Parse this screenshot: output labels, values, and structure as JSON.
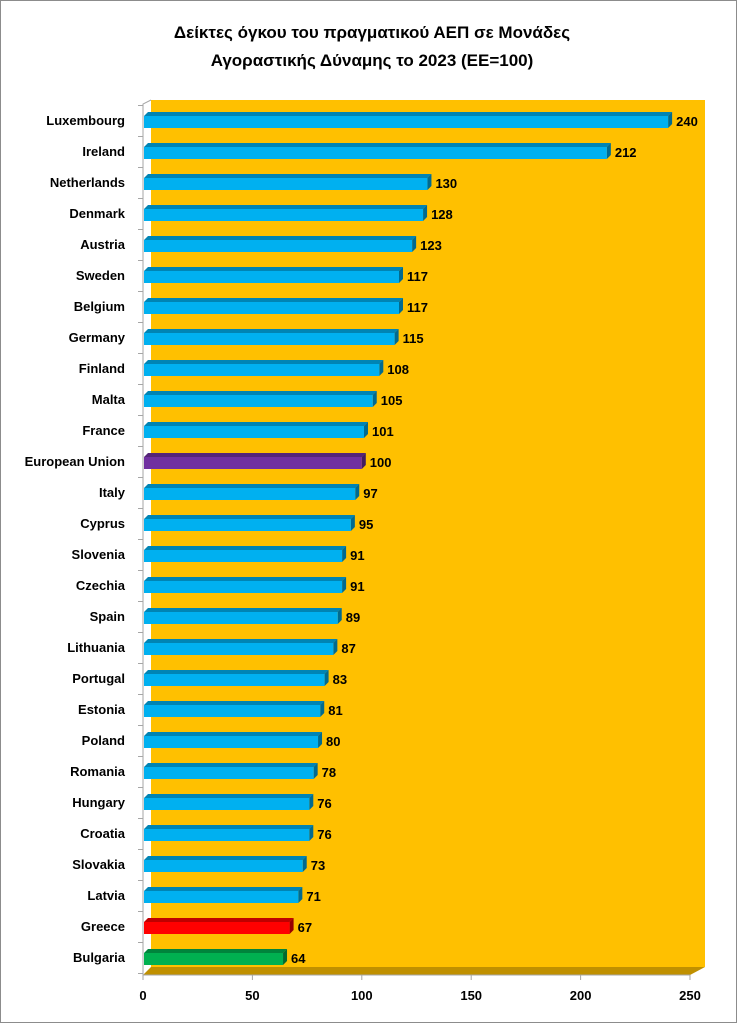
{
  "chart_data": {
    "type": "bar",
    "orientation": "horizontal",
    "title": [
      "Δείκτες όγκου του πραγματικού ΑΕΠ σε Μονάδες",
      "Αγοραστικής Δύναμης το 2023 (ΕΕ=100)"
    ],
    "xlabel": "",
    "ylabel": "",
    "xlim": [
      0,
      250
    ],
    "xticks": [
      "0",
      "50",
      "100",
      "150",
      "200",
      "250"
    ],
    "categories": [
      "Luxembourg",
      "Ireland",
      "Netherlands",
      "Denmark",
      "Austria",
      "Sweden",
      "Belgium",
      "Germany",
      "Finland",
      "Malta",
      "France",
      "European Union",
      "Italy",
      "Cyprus",
      "Slovenia",
      "Czechia",
      "Spain",
      "Lithuania",
      "Portugal",
      "Estonia",
      "Poland",
      "Romania",
      "Hungary",
      "Croatia",
      "Slovakia",
      "Latvia",
      "Greece",
      "Bulgaria"
    ],
    "values": [
      240,
      212,
      130,
      128,
      123,
      117,
      117,
      115,
      108,
      105,
      101,
      100,
      97,
      95,
      91,
      91,
      89,
      87,
      83,
      81,
      80,
      78,
      76,
      76,
      73,
      71,
      67,
      64
    ],
    "colors": {
      "default": "#00B0F0",
      "European Union": "#7030A0",
      "Greece": "#FF0000",
      "Bulgaria": "#00B050",
      "wall": "#FFC000",
      "floor": "#C09000"
    },
    "grid": false,
    "legend": "none"
  }
}
